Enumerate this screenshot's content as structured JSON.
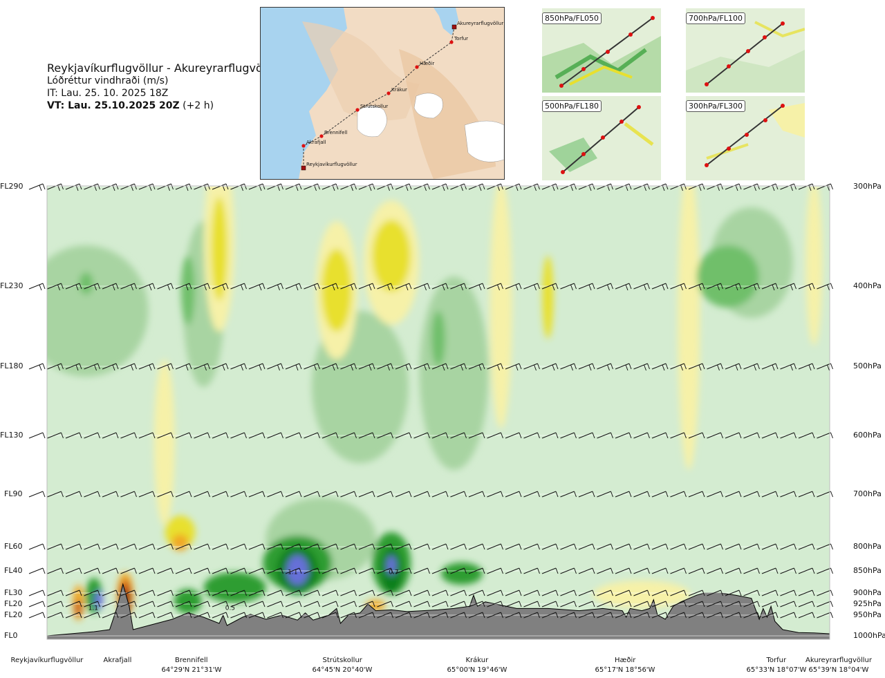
{
  "header": {
    "route": "Reykjavíkurflugvöllur - Akureyrarflugvöllur",
    "variable": "Lóðréttur vindhraði (m/s)",
    "issue_time": "IT: Lau. 25. 10. 2025 18Z",
    "valid_label": "VT: Lau. 25.10.2025 20Z",
    "valid_offset": "(+2 h)"
  },
  "map": {
    "points": [
      {
        "name": "Akureyrarflugvöllur",
        "marker": "square"
      },
      {
        "name": "Torfur",
        "marker": "dot"
      },
      {
        "name": "Hæðir",
        "marker": "dot"
      },
      {
        "name": "Krákur",
        "marker": "dot"
      },
      {
        "name": "Strútskollur",
        "marker": "dot"
      },
      {
        "name": "Brennifell",
        "marker": "dot"
      },
      {
        "name": "Akrafjall",
        "marker": "dot"
      },
      {
        "name": "Reykjavíkurflugvöllur",
        "marker": "square"
      }
    ],
    "colors": {
      "sea": "#a8d3ef",
      "land": "#f2dcc4",
      "ice": "#ffffff",
      "route": "#333333",
      "point": "#dd1111"
    }
  },
  "thumbnails": [
    {
      "label": "850hPa/FL050"
    },
    {
      "label": "700hPa/FL100"
    },
    {
      "label": "500hPa/FL180"
    },
    {
      "label": "300hPa/FL300"
    }
  ],
  "chart_data": {
    "type": "heatmap",
    "title": "Lóðréttur vindhraði (m/s)",
    "y_left_labels": [
      "FL290",
      "FL230",
      "FL180",
      "FL130",
      "FL90",
      "FL60",
      "FL40",
      "FL30",
      "FL20",
      "FL20",
      "FL0"
    ],
    "y_right_labels": [
      "300hPa",
      "400hPa",
      "500hPa",
      "600hPa",
      "700hPa",
      "800hPa",
      "850hPa",
      "900hPa",
      "925hPa",
      "950hPa",
      "1000hPa"
    ],
    "pressure_levels_hpa": [
      300,
      400,
      500,
      600,
      700,
      800,
      850,
      900,
      925,
      950,
      1000
    ],
    "ylim_hpa": [
      1000,
      300
    ],
    "x_points": [
      {
        "name": "Reykjavíkurflugvöllur",
        "coord": ""
      },
      {
        "name": "Akrafjall",
        "coord": ""
      },
      {
        "name": "Brennifell",
        "coord": "64°29'N 21°31'W"
      },
      {
        "name": "Strútskollur",
        "coord": "64°45'N 20°40'W"
      },
      {
        "name": "Krákur",
        "coord": "65°00'N 19°46'W"
      },
      {
        "name": "Hæðir",
        "coord": "65°17'N 18°56'W"
      },
      {
        "name": "Torfur",
        "coord": "65°33'N 18°07'W"
      },
      {
        "name": "Akureyrarflugvöllur",
        "coord": "65°39'N 18°04'W"
      }
    ],
    "x_range": [
      0,
      1
    ],
    "x_positions": [
      0.0,
      0.094,
      0.184,
      0.377,
      0.547,
      0.738,
      0.952,
      1.0
    ],
    "annotations": [
      {
        "text": "1.1",
        "x": 0.059,
        "p_hpa": 932,
        "kind": "max"
      },
      {
        "text": "0.5",
        "x": 0.234,
        "p_hpa": 932,
        "kind": "max"
      },
      {
        "text": "1.1",
        "x": 0.314,
        "p_hpa": 851,
        "kind": "max"
      },
      {
        "text": "0.7",
        "x": 0.443,
        "p_hpa": 851,
        "kind": "max"
      }
    ],
    "color_scale": {
      "strong_down": "#7a2a08",
      "down_2": "#c7561a",
      "down_1": "#f0a828",
      "weak_down": "#e8e02e",
      "slight_down": "#f6f1a8",
      "neutral": "#d4ecd1",
      "slight_up": "#a8d4a2",
      "weak_up": "#6fbf6a",
      "up_1": "#2f9d33",
      "up_2": "#0f7f1f",
      "strong_up": "#6670d8",
      "terrain": "#808080"
    },
    "grid": false,
    "wind_barbs": true
  }
}
